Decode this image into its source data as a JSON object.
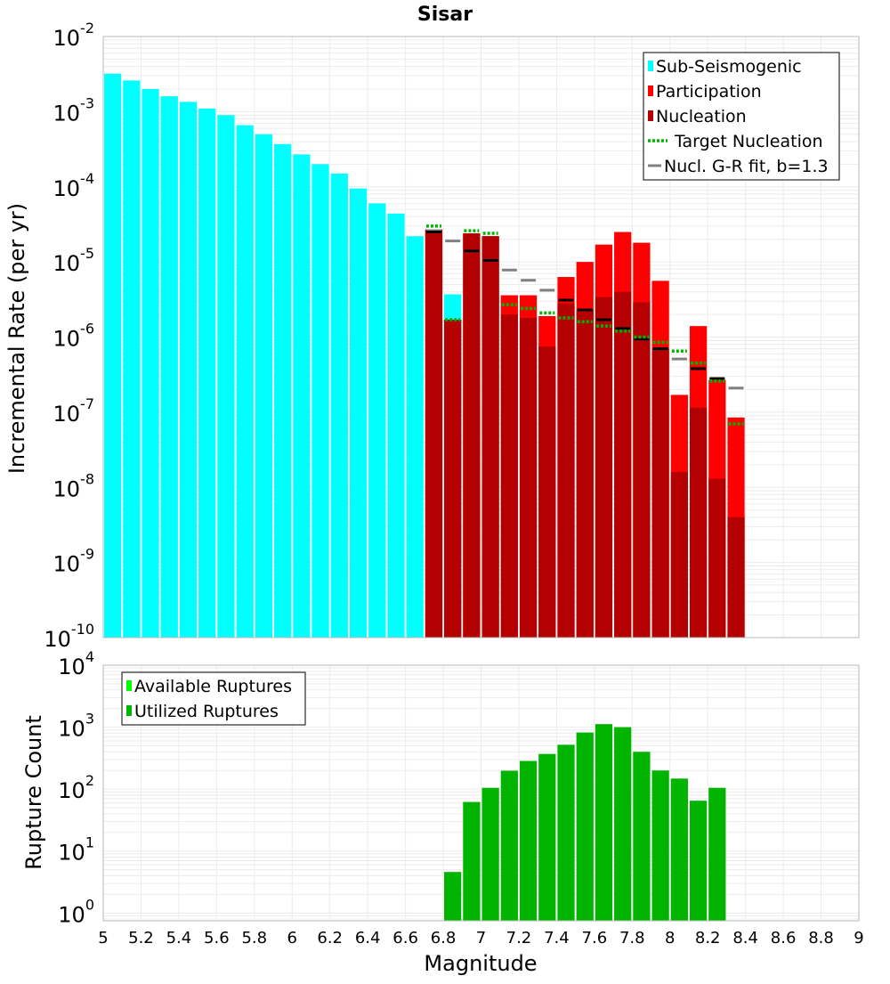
{
  "chart_data": [
    {
      "type": "bar",
      "title": "Sisar",
      "xlabel": "",
      "ylabel": "Incremental Rate (per yr)",
      "yscale": "log",
      "ylim": [
        1e-10,
        0.01
      ],
      "xlim": [
        5,
        9
      ],
      "grid": true,
      "legend_position": "top-right",
      "bar_width": 0.1,
      "y_tick_labels": [
        "10-10",
        "10-9",
        "10-8",
        "10-7",
        "10-6",
        "10-5",
        "10-4",
        "10-3",
        "10-2"
      ],
      "y_tick_exponents": [
        -10,
        -9,
        -8,
        -7,
        -6,
        -5,
        -4,
        -3,
        -2
      ],
      "legend": [
        {
          "label": "Sub-Seismogenic",
          "symbol": "bar",
          "color": "#00ffff"
        },
        {
          "label": "Participation",
          "symbol": "bar",
          "color": "#ff0000"
        },
        {
          "label": "Nucleation",
          "symbol": "bar",
          "color": "#b40000"
        },
        {
          "label": "Target Nucleation",
          "symbol": "dotted",
          "color": "#00b400"
        },
        {
          "label": "Nucl. G-R fit, b=1.3",
          "symbol": "line",
          "color": "#808080"
        }
      ],
      "series": [
        {
          "name": "Sub-Seismogenic",
          "color": "#00ffff",
          "x": [
            5.05,
            5.15,
            5.25,
            5.35,
            5.45,
            5.55,
            5.65,
            5.75,
            5.85,
            5.95,
            6.05,
            6.15,
            6.25,
            6.35,
            6.45,
            6.55,
            6.65,
            6.85
          ],
          "values": [
            0.0032,
            0.0026,
            0.002,
            0.0016,
            0.00135,
            0.0011,
            0.0009,
            0.00066,
            0.0005,
            0.00037,
            0.00027,
            0.0002,
            0.00015,
            9.5e-05,
            6e-05,
            4.4e-05,
            2.2e-05,
            3.7e-06
          ]
        },
        {
          "name": "Participation",
          "color": "#ff0000",
          "x": [
            6.75,
            6.85,
            6.95,
            7.05,
            7.15,
            7.25,
            7.35,
            7.45,
            7.55,
            7.65,
            7.75,
            7.85,
            7.95,
            8.05,
            8.15,
            8.25,
            8.35
          ],
          "values": [
            2.7e-05,
            1.7e-06,
            2.4e-05,
            2.2e-05,
            3.6e-06,
            3.6e-06,
            1.9e-06,
            6.3e-06,
            1e-05,
            1.7e-05,
            2.5e-05,
            1.8e-05,
            5.6e-06,
            1.7e-07,
            1.4e-06,
            2.7e-07,
            8.5e-08
          ]
        },
        {
          "name": "Nucleation",
          "color": "#b40000",
          "x": [
            6.75,
            6.85,
            6.95,
            7.05,
            7.15,
            7.25,
            7.35,
            7.45,
            7.55,
            7.65,
            7.75,
            7.85,
            7.95,
            8.05,
            8.15,
            8.25,
            8.35
          ],
          "values": [
            2.7e-05,
            1.7e-06,
            2.4e-05,
            2.2e-05,
            2e-06,
            1.8e-06,
            7.5e-07,
            2.8e-06,
            2.3e-06,
            3.4e-06,
            4e-06,
            2.9e-06,
            7e-07,
            1.6e-08,
            1.15e-07,
            1.3e-08,
            4e-09
          ]
        },
        {
          "name": "Target Nucleation",
          "color": "#00b400",
          "x": [
            6.75,
            6.85,
            6.95,
            7.05,
            7.15,
            7.25,
            7.35,
            7.45,
            7.55,
            7.65,
            7.75,
            7.85,
            7.95,
            8.05,
            8.15,
            8.25,
            8.35
          ],
          "values": [
            3e-05,
            1.7e-06,
            2.6e-05,
            2.4e-05,
            2.7e-06,
            2.4e-06,
            2.1e-06,
            1.8e-06,
            1.6e-06,
            1.4e-06,
            1.2e-06,
            1e-06,
            8.5e-07,
            6.5e-07,
            4.5e-07,
            2.6e-07,
            7e-08
          ]
        },
        {
          "name": "Nucl. G-R fit, b=1.3",
          "color": "#808080",
          "x": [
            6.75,
            6.85,
            6.95,
            7.05,
            7.15,
            7.25,
            7.35,
            7.45,
            7.55,
            7.65,
            7.75,
            7.85,
            7.95,
            8.05,
            8.15,
            8.25,
            8.35
          ],
          "values": [
            2.6e-05,
            1.9e-05,
            1.4e-05,
            1.05e-05,
            7.8e-06,
            5.7e-06,
            4.2e-06,
            3.1e-06,
            2.3e-06,
            1.7e-06,
            1.3e-06,
            9.4e-07,
            7e-07,
            5.1e-07,
            3.8e-07,
            2.8e-07,
            2.1e-07
          ]
        },
        {
          "name": "",
          "color": "#000000",
          "x": [
            6.75,
            6.95,
            7.05,
            7.45,
            7.55,
            7.65,
            7.75,
            7.85,
            7.95,
            8.15,
            8.25
          ],
          "values": [
            2.5e-05,
            1.4e-05,
            1.05e-05,
            3.1e-06,
            2.3e-06,
            1.7e-06,
            1.3e-06,
            9.4e-07,
            7e-07,
            3.8e-07,
            2.8e-07
          ]
        }
      ]
    },
    {
      "type": "bar",
      "title": "",
      "xlabel": "Magnitude",
      "ylabel": "Rupture Count",
      "yscale": "log",
      "ylim": [
        0.75,
        10000
      ],
      "xlim": [
        5,
        9
      ],
      "grid": true,
      "legend_position": "top-left",
      "bar_width": 0.1,
      "x_tick_labels": [
        "5",
        "5.2",
        "5.4",
        "5.6",
        "5.8",
        "6",
        "6.2",
        "6.4",
        "6.6",
        "6.8",
        "7",
        "7.2",
        "7.4",
        "7.6",
        "7.8",
        "8",
        "8.2",
        "8.4",
        "8.6",
        "8.8",
        "9"
      ],
      "x_ticks": [
        5,
        5.2,
        5.4,
        5.6,
        5.8,
        6,
        6.2,
        6.4,
        6.6,
        6.8,
        7,
        7.2,
        7.4,
        7.6,
        7.8,
        8,
        8.2,
        8.4,
        8.6,
        8.8,
        9
      ],
      "y_tick_labels": [
        "100",
        "101",
        "102",
        "103",
        "104"
      ],
      "y_tick_exponents": [
        0,
        1,
        2,
        3,
        4
      ],
      "legend": [
        {
          "label": "Available Ruptures",
          "symbol": "bar",
          "color": "#00ff00"
        },
        {
          "label": "Utilized Ruptures",
          "symbol": "bar",
          "color": "#00b400"
        }
      ],
      "series": [
        {
          "name": "Utilized Ruptures",
          "color": "#00b400",
          "x": [
            6.85,
            6.95,
            7.05,
            7.15,
            7.25,
            7.35,
            7.45,
            7.55,
            7.65,
            7.75,
            7.85,
            7.95,
            8.05,
            8.15,
            8.25
          ],
          "values": [
            4.6,
            62,
            105,
            198,
            285,
            370,
            520,
            820,
            1120,
            1000,
            400,
            200,
            148,
            65,
            105
          ]
        }
      ]
    }
  ]
}
